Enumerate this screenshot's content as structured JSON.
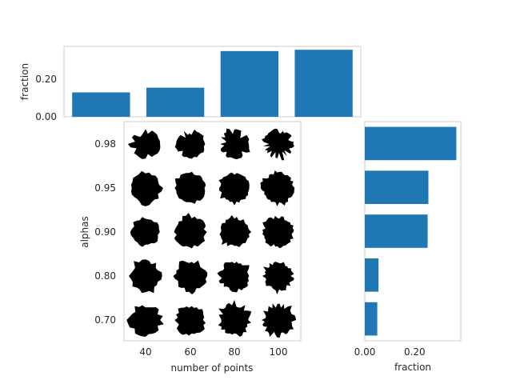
{
  "chart_data": [
    {
      "type": "bar",
      "panel": "top-marginal",
      "categories": [
        "40",
        "60",
        "80",
        "100"
      ],
      "values": [
        0.13,
        0.155,
        0.35,
        0.357
      ],
      "ylabel": "fraction",
      "ylim": [
        0,
        0.375
      ],
      "yticks": [
        "0.00",
        "0.20"
      ],
      "color": "#1f77b4",
      "grid": false
    },
    {
      "type": "table",
      "panel": "main",
      "description_of_cells": "grid of black blob shapes, one per (number of points, alpha) pair",
      "xlabel": "number of points",
      "ylabel": "alphas",
      "xticks": [
        "40",
        "60",
        "80",
        "100"
      ],
      "yticks": [
        "0.98",
        "0.95",
        "0.90",
        "0.80",
        "0.70"
      ],
      "cell_color": "#000000"
    },
    {
      "type": "bar",
      "orientation": "horizontal",
      "panel": "right-marginal",
      "categories": [
        "0.98",
        "0.95",
        "0.90",
        "0.80",
        "0.70"
      ],
      "values": [
        0.367,
        0.255,
        0.252,
        0.055,
        0.05
      ],
      "xlabel": "fraction",
      "xlim": [
        0,
        0.385
      ],
      "xticks": [
        "0.00",
        "0.20"
      ],
      "color": "#1f77b4",
      "grid": false
    }
  ]
}
